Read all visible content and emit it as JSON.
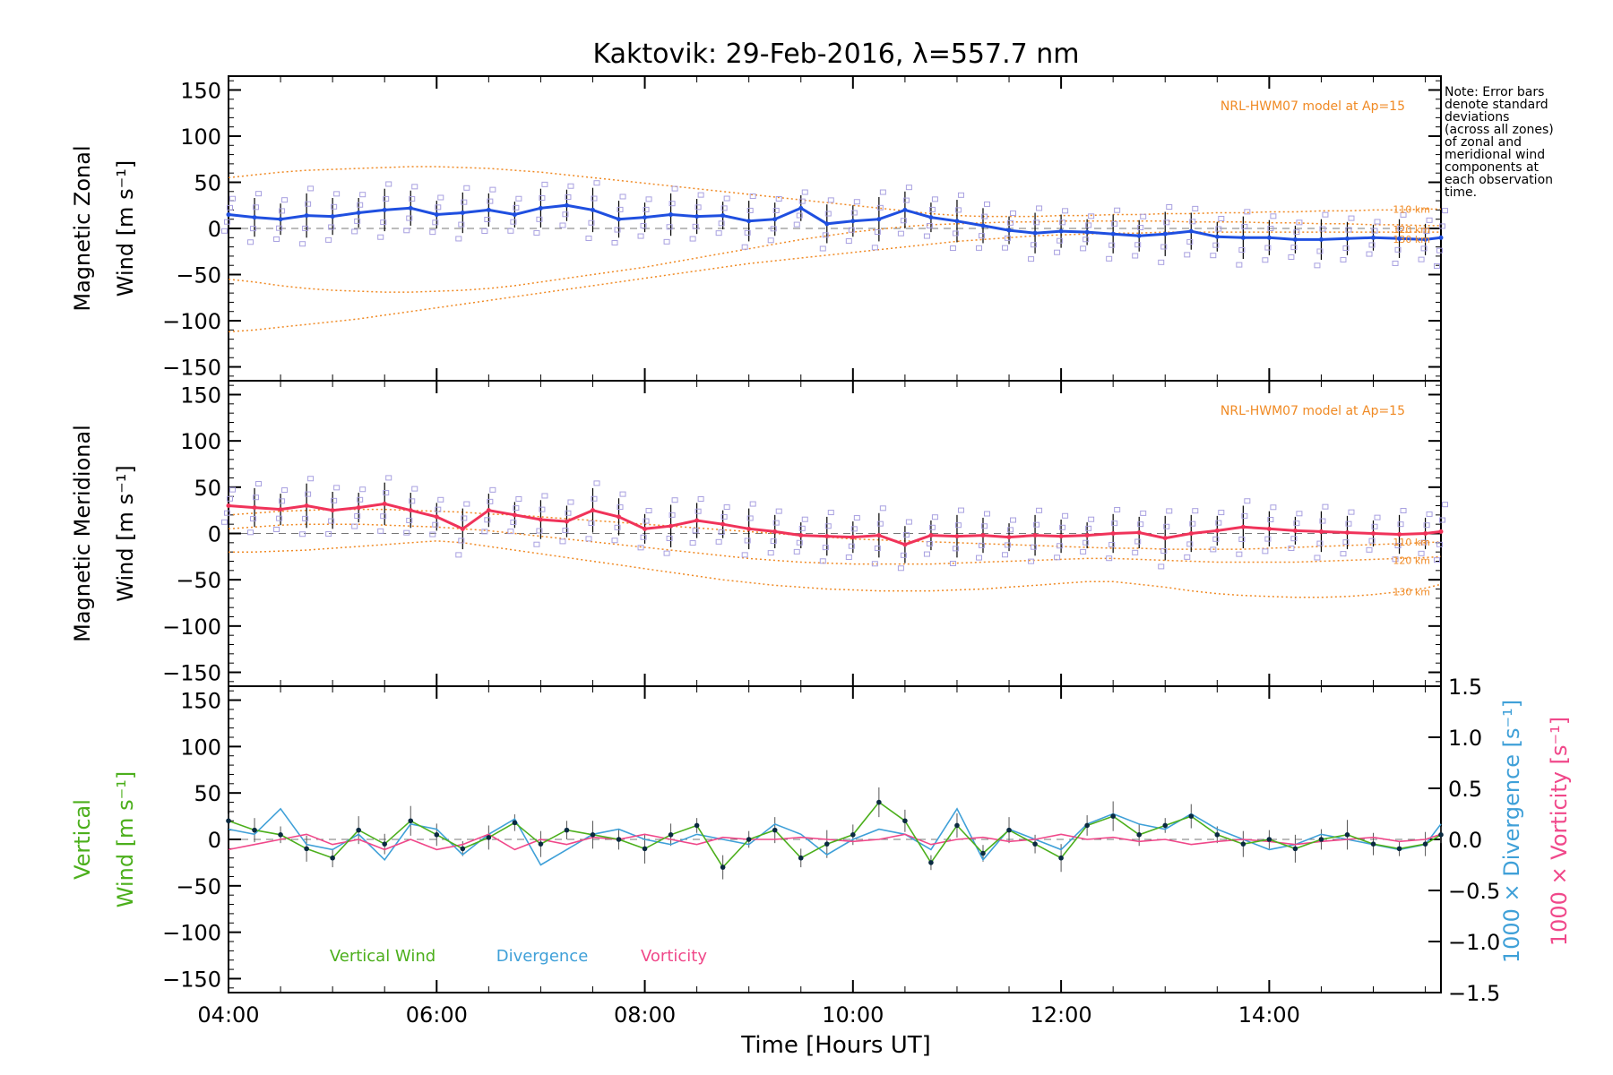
{
  "title": "Kaktovik: 29-Feb-2016, λ=557.7 nm",
  "note": {
    "lines": [
      "Note: Error bars",
      "denote standard",
      "deviations",
      "(across all zones)",
      "of zonal and",
      "meridional wind",
      "components at",
      "each observation",
      "time."
    ]
  },
  "colors": {
    "zonal": "#1f4fe0",
    "meridional": "#f0335a",
    "vertical": "#4caf1c",
    "divergence": "#3fa0d8",
    "vorticity": "#f0488a",
    "model": "#f08a24",
    "zone_points": "#a8a0e0",
    "error_bars": "#000000"
  },
  "chart_data": [
    {
      "type": "line",
      "panel": "zonal",
      "ylabel": [
        "Magnetic Zonal",
        "Wind [m s⁻¹]"
      ],
      "ylim": [
        -165,
        165
      ],
      "yticks": [
        -150,
        -100,
        -50,
        0,
        50,
        100,
        150
      ],
      "model_label": "NRL-HWM07 model at Ap=15",
      "model_heights": [
        "110 km",
        "120 km",
        "130 km"
      ],
      "x": [
        4.0,
        4.25,
        4.5,
        4.75,
        5.0,
        5.25,
        5.5,
        5.75,
        6.0,
        6.25,
        6.5,
        6.75,
        7.0,
        7.25,
        7.5,
        7.75,
        8.0,
        8.25,
        8.5,
        8.75,
        9.0,
        9.25,
        9.5,
        9.75,
        10.0,
        10.25,
        10.5,
        10.75,
        11.0,
        11.25,
        11.5,
        11.75,
        12.0,
        12.25,
        12.5,
        12.75,
        13.0,
        13.25,
        13.5,
        13.75,
        14.0,
        14.25,
        14.5,
        14.75,
        15.0,
        15.25,
        15.5,
        15.65
      ],
      "series": [
        {
          "name": "Zonal Wind",
          "values": [
            15,
            12,
            10,
            14,
            13,
            17,
            20,
            22,
            15,
            17,
            20,
            15,
            22,
            25,
            20,
            10,
            12,
            15,
            13,
            14,
            8,
            10,
            22,
            5,
            8,
            10,
            20,
            12,
            8,
            3,
            -2,
            -5,
            -3,
            -4,
            -6,
            -8,
            -6,
            -3,
            -9,
            -10,
            -10,
            -12,
            -12,
            -11,
            -10,
            -11,
            -12,
            -10
          ]
        },
        {
          "name": "110 km",
          "values": [
            55,
            58,
            61,
            63,
            64,
            65,
            66,
            67,
            67,
            66,
            65,
            63,
            61,
            58,
            55,
            52,
            49,
            46,
            43,
            40,
            37,
            34,
            31,
            28,
            25,
            22,
            19,
            16,
            14,
            13,
            13,
            13,
            14,
            14,
            15,
            15,
            16,
            16,
            17,
            17,
            18,
            18,
            19,
            19,
            20,
            20,
            21,
            21
          ]
        },
        {
          "name": "120 km",
          "values": [
            -55,
            -58,
            -62,
            -65,
            -67,
            -68,
            -69,
            -69,
            -68,
            -67,
            -65,
            -62,
            -58,
            -54,
            -50,
            -46,
            -42,
            -37,
            -32,
            -27,
            -22,
            -17,
            -12,
            -8,
            -4,
            -1,
            2,
            4,
            5,
            6,
            7,
            7,
            8,
            8,
            8,
            8,
            8,
            7,
            7,
            7,
            6,
            6,
            5,
            5,
            4,
            4,
            3,
            3
          ]
        },
        {
          "name": "130 km",
          "values": [
            -112,
            -110,
            -107,
            -104,
            -101,
            -98,
            -94,
            -90,
            -86,
            -82,
            -78,
            -74,
            -70,
            -66,
            -62,
            -58,
            -54,
            -50,
            -46,
            -42,
            -38,
            -35,
            -32,
            -29,
            -26,
            -23,
            -20,
            -17,
            -14,
            -12,
            -10,
            -8,
            -7,
            -6,
            -5,
            -5,
            -4,
            -4,
            -4,
            -4,
            -4,
            -4,
            -4,
            -4,
            -4,
            -4,
            -4,
            -4
          ]
        }
      ]
    },
    {
      "type": "line",
      "panel": "meridional",
      "ylabel": [
        "Magnetic Meridional",
        "Wind [m s⁻¹]"
      ],
      "ylim": [
        -165,
        165
      ],
      "yticks": [
        -150,
        -100,
        -50,
        0,
        50,
        100,
        150
      ],
      "model_label": "NRL-HWM07 model at Ap=15",
      "model_heights": [
        "110 km",
        "120 km",
        "130 km"
      ],
      "x": [
        4.0,
        4.25,
        4.5,
        4.75,
        5.0,
        5.25,
        5.5,
        5.75,
        6.0,
        6.25,
        6.5,
        6.75,
        7.0,
        7.25,
        7.5,
        7.75,
        8.0,
        8.25,
        8.5,
        8.75,
        9.0,
        9.25,
        9.5,
        9.75,
        10.0,
        10.25,
        10.5,
        10.75,
        11.0,
        11.25,
        11.5,
        11.75,
        12.0,
        12.25,
        12.5,
        12.75,
        13.0,
        13.25,
        13.5,
        13.75,
        14.0,
        14.25,
        14.5,
        14.75,
        15.0,
        15.25,
        15.5,
        15.65
      ],
      "series": [
        {
          "name": "Meridional Wind",
          "values": [
            30,
            28,
            26,
            30,
            25,
            28,
            32,
            25,
            18,
            5,
            25,
            20,
            15,
            13,
            25,
            18,
            5,
            8,
            14,
            10,
            5,
            2,
            -2,
            -3,
            -4,
            -2,
            -12,
            -2,
            -3,
            -2,
            -4,
            -2,
            -3,
            -2,
            0,
            1,
            -5,
            0,
            3,
            7,
            5,
            3,
            2,
            1,
            0,
            -1,
            0,
            2
          ]
        },
        {
          "name": "110 km",
          "values": [
            20,
            22,
            24,
            25,
            26,
            26,
            26,
            25,
            24,
            23,
            21,
            20,
            18,
            16,
            14,
            12,
            10,
            8,
            6,
            4,
            2,
            0,
            -2,
            -4,
            -6,
            -7,
            -8,
            -9,
            -10,
            -11,
            -12,
            -13,
            -14,
            -15,
            -16,
            -16,
            -17,
            -17,
            -17,
            -17,
            -16,
            -15,
            -14,
            -13,
            -12,
            -11,
            -10,
            -9
          ]
        },
        {
          "name": "120 km",
          "values": [
            5,
            7,
            9,
            10,
            10,
            10,
            9,
            8,
            7,
            5,
            3,
            0,
            -3,
            -6,
            -9,
            -12,
            -15,
            -18,
            -21,
            -24,
            -27,
            -29,
            -31,
            -32,
            -33,
            -33,
            -33,
            -33,
            -32,
            -31,
            -30,
            -29,
            -28,
            -27,
            -27,
            -28,
            -29,
            -30,
            -31,
            -31,
            -31,
            -31,
            -30,
            -29,
            -28,
            -27,
            -26,
            -25
          ]
        },
        {
          "name": "130 km",
          "values": [
            -20,
            -20,
            -19,
            -18,
            -16,
            -14,
            -12,
            -10,
            -8,
            -10,
            -14,
            -18,
            -22,
            -26,
            -30,
            -34,
            -38,
            -42,
            -46,
            -50,
            -53,
            -56,
            -58,
            -60,
            -61,
            -62,
            -62,
            -62,
            -61,
            -60,
            -58,
            -56,
            -54,
            -52,
            -52,
            -55,
            -58,
            -62,
            -65,
            -67,
            -68,
            -69,
            -69,
            -68,
            -66,
            -63,
            -59,
            -55
          ]
        }
      ]
    },
    {
      "type": "line",
      "panel": "vertical",
      "ylabel_left": [
        "Vertical",
        "Wind [m s⁻¹]"
      ],
      "ylabel_right_1": "1000 × Divergence [s⁻¹]",
      "ylabel_right_2": "1000 × Vorticity [s⁻¹]",
      "ylim": [
        -165,
        165
      ],
      "yticks": [
        -150,
        -100,
        -50,
        0,
        50,
        100,
        150
      ],
      "y2lim": [
        -1.5,
        1.5
      ],
      "y2ticks": [
        -1.5,
        -1.0,
        -0.5,
        0.0,
        0.5,
        1.0,
        1.5
      ],
      "legend": [
        "Vertical Wind",
        "Divergence",
        "Vorticity"
      ],
      "x": [
        4.0,
        4.25,
        4.5,
        4.75,
        5.0,
        5.25,
        5.5,
        5.75,
        6.0,
        6.25,
        6.5,
        6.75,
        7.0,
        7.25,
        7.5,
        7.75,
        8.0,
        8.25,
        8.5,
        8.75,
        9.0,
        9.25,
        9.5,
        9.75,
        10.0,
        10.25,
        10.5,
        10.75,
        11.0,
        11.25,
        11.5,
        11.75,
        12.0,
        12.25,
        12.5,
        12.75,
        13.0,
        13.25,
        13.5,
        13.75,
        14.0,
        14.25,
        14.5,
        14.75,
        15.0,
        15.25,
        15.5,
        15.65
      ],
      "series": [
        {
          "name": "Vertical Wind",
          "axis": "left",
          "values": [
            20,
            10,
            5,
            -10,
            -20,
            10,
            -5,
            20,
            5,
            -10,
            2,
            18,
            -5,
            10,
            5,
            0,
            -10,
            5,
            15,
            -30,
            0,
            10,
            -20,
            -5,
            5,
            40,
            20,
            -25,
            15,
            -15,
            10,
            -5,
            -20,
            15,
            25,
            5,
            15,
            25,
            5,
            -5,
            0,
            -10,
            0,
            5,
            -5,
            -10,
            -5,
            5
          ]
        },
        {
          "name": "Divergence",
          "axis": "right",
          "values": [
            0.1,
            0.05,
            0.3,
            -0.05,
            -0.1,
            0.05,
            -0.2,
            0.15,
            0.1,
            -0.15,
            0.05,
            0.2,
            -0.25,
            -0.1,
            0.05,
            0.1,
            0.0,
            -0.05,
            0.05,
            0.0,
            -0.05,
            0.15,
            0.05,
            -0.15,
            0.0,
            0.1,
            0.05,
            -0.1,
            0.3,
            -0.2,
            0.1,
            0.0,
            -0.1,
            0.15,
            0.25,
            0.15,
            0.1,
            0.25,
            0.1,
            0.0,
            -0.1,
            -0.05,
            0.05,
            0.0,
            -0.05,
            -0.1,
            -0.05,
            0.15
          ]
        },
        {
          "name": "Vorticity",
          "axis": "right",
          "values": [
            -0.1,
            -0.05,
            0.0,
            0.05,
            -0.05,
            0.0,
            -0.1,
            0.0,
            -0.1,
            -0.05,
            0.05,
            -0.1,
            0.0,
            -0.05,
            0.02,
            0.0,
            0.05,
            0.0,
            -0.05,
            0.02,
            0.0,
            0.0,
            0.02,
            0.0,
            -0.02,
            0.0,
            0.05,
            -0.05,
            0.0,
            0.02,
            -0.02,
            0.0,
            0.05,
            0.0,
            0.02,
            -0.02,
            0.0,
            -0.05,
            -0.02,
            0.0,
            -0.02,
            -0.05,
            -0.02,
            0.0,
            0.02,
            -0.02,
            0.0,
            0.05
          ]
        }
      ]
    }
  ],
  "xaxis": {
    "label": "Time [Hours UT]",
    "xlim": [
      4.0,
      15.65
    ],
    "ticks": [
      4,
      6,
      8,
      10,
      12,
      14
    ],
    "tick_labels": [
      "04:00",
      "06:00",
      "08:00",
      "10:00",
      "12:00",
      "14:00"
    ]
  }
}
